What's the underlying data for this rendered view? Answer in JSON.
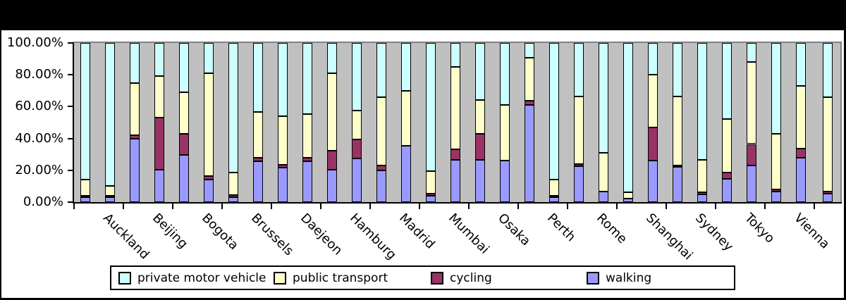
{
  "window": {
    "background": "#000000",
    "panel_background": "#ffffff",
    "plot_background": "#C0C0C0"
  },
  "chart_data": {
    "type": "bar",
    "stacked": true,
    "title": "",
    "grid": false,
    "legend_position": "bottom",
    "y_axis": {
      "min": 0,
      "max": 100,
      "tick_labels_top_to_bottom": [
        "100.00%",
        "80.00%",
        "60.00%",
        "40.00%",
        "20.00%",
        "0.00%"
      ]
    },
    "series": [
      {
        "key": "walking",
        "label": "walking",
        "color": "#9999FF"
      },
      {
        "key": "cycling",
        "label": "cycling",
        "color": "#993366"
      },
      {
        "key": "public_transport",
        "label": "public transport",
        "color": "#FFFFCC"
      },
      {
        "key": "private_motor_vehicle",
        "label": "private motor vehicle",
        "color": "#CCFFFF"
      }
    ],
    "legend_order": [
      "private_motor_vehicle",
      "public_transport",
      "cycling",
      "walking"
    ],
    "categories": [
      "Auckland",
      "Beijing",
      "Bogota",
      "Brussels",
      "Daejeon",
      "Hamburg",
      "Madrid",
      "Mumbai",
      "Osaka",
      "Perth",
      "Rome",
      "Shanghai",
      "Sydney",
      "Tokyo",
      "Vienna",
      ""
    ],
    "groups": [
      {
        "city": "Auckland",
        "bars": [
          {
            "walking": 3,
            "cycling": 1,
            "public_transport": 10,
            "private_motor_vehicle": 86
          },
          {
            "walking": 3,
            "cycling": 1,
            "public_transport": 6,
            "private_motor_vehicle": 90
          }
        ]
      },
      {
        "city": "Beijing",
        "bars": [
          {
            "walking": 40,
            "cycling": 2,
            "public_transport": 33,
            "private_motor_vehicle": 25
          },
          {
            "walking": 20.5,
            "cycling": 32.5,
            "public_transport": 26,
            "private_motor_vehicle": 21
          }
        ]
      },
      {
        "city": "Bogota",
        "bars": [
          {
            "walking": 29.5,
            "cycling": 13.5,
            "public_transport": 26,
            "private_motor_vehicle": 31
          },
          {
            "walking": 14,
            "cycling": 2.5,
            "public_transport": 64.5,
            "private_motor_vehicle": 19
          }
        ]
      },
      {
        "city": "Brussels",
        "bars": [
          {
            "walking": 3,
            "cycling": 1.5,
            "public_transport": 14,
            "private_motor_vehicle": 81.5
          },
          {
            "walking": 25.5,
            "cycling": 2.5,
            "public_transport": 28.5,
            "private_motor_vehicle": 43.5
          }
        ]
      },
      {
        "city": "Daejeon",
        "bars": [
          {
            "walking": 21.5,
            "cycling": 2,
            "public_transport": 30.5,
            "private_motor_vehicle": 46
          },
          {
            "walking": 25.5,
            "cycling": 2.5,
            "public_transport": 27.5,
            "private_motor_vehicle": 44.5
          }
        ]
      },
      {
        "city": "Hamburg",
        "bars": [
          {
            "walking": 20.5,
            "cycling": 12,
            "public_transport": 48.5,
            "private_motor_vehicle": 19
          },
          {
            "walking": 27.5,
            "cycling": 12,
            "public_transport": 18,
            "private_motor_vehicle": 42.5
          }
        ]
      },
      {
        "city": "Madrid",
        "bars": [
          {
            "walking": 20,
            "cycling": 3,
            "public_transport": 43,
            "private_motor_vehicle": 34
          },
          {
            "walking": 35.5,
            "cycling": 0,
            "public_transport": 34.5,
            "private_motor_vehicle": 30
          }
        ]
      },
      {
        "city": "Mumbai",
        "bars": [
          {
            "walking": 4,
            "cycling": 1.5,
            "public_transport": 14,
            "private_motor_vehicle": 80.5
          },
          {
            "walking": 26.5,
            "cycling": 6.5,
            "public_transport": 52,
            "private_motor_vehicle": 15
          }
        ]
      },
      {
        "city": "Osaka",
        "bars": [
          {
            "walking": 26.5,
            "cycling": 16.5,
            "public_transport": 21,
            "private_motor_vehicle": 36
          },
          {
            "walking": 26,
            "cycling": 0,
            "public_transport": 35,
            "private_motor_vehicle": 39
          }
        ]
      },
      {
        "city": "Perth",
        "bars": [
          {
            "walking": 61,
            "cycling": 2.5,
            "public_transport": 27,
            "private_motor_vehicle": 9.5
          },
          {
            "walking": 3,
            "cycling": 1,
            "public_transport": 10,
            "private_motor_vehicle": 86
          }
        ]
      },
      {
        "city": "Rome",
        "bars": [
          {
            "walking": 22.5,
            "cycling": 1.5,
            "public_transport": 42.5,
            "private_motor_vehicle": 33.5
          },
          {
            "walking": 6.5,
            "cycling": 0,
            "public_transport": 24.5,
            "private_motor_vehicle": 69
          }
        ]
      },
      {
        "city": "Shanghai",
        "bars": [
          {
            "walking": 2,
            "cycling": 0,
            "public_transport": 4,
            "private_motor_vehicle": 94
          },
          {
            "walking": 26,
            "cycling": 21,
            "public_transport": 33,
            "private_motor_vehicle": 20
          }
        ]
      },
      {
        "city": "Sydney",
        "bars": [
          {
            "walking": 22,
            "cycling": 1,
            "public_transport": 43.5,
            "private_motor_vehicle": 33.5
          },
          {
            "walking": 5,
            "cycling": 1,
            "public_transport": 20.5,
            "private_motor_vehicle": 73.5
          }
        ]
      },
      {
        "city": "Tokyo",
        "bars": [
          {
            "walking": 14.5,
            "cycling": 4,
            "public_transport": 33.5,
            "private_motor_vehicle": 48
          },
          {
            "walking": 23,
            "cycling": 13.5,
            "public_transport": 51.5,
            "private_motor_vehicle": 12
          }
        ]
      },
      {
        "city": "Vienna",
        "bars": [
          {
            "walking": 6.5,
            "cycling": 1.5,
            "public_transport": 35,
            "private_motor_vehicle": 57
          },
          {
            "walking": 28,
            "cycling": 5.5,
            "public_transport": 39.5,
            "private_motor_vehicle": 27
          }
        ]
      },
      {
        "city": "",
        "bars": [
          {
            "walking": 5.5,
            "cycling": 1,
            "public_transport": 59.5,
            "private_motor_vehicle": 34
          }
        ]
      }
    ]
  }
}
